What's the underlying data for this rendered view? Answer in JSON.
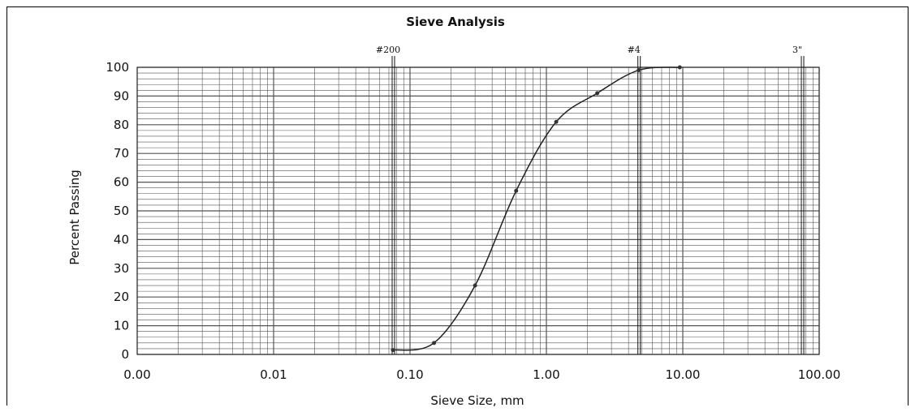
{
  "chart_data": {
    "type": "line",
    "title": "Sieve Analysis",
    "xlabel": "Sieve Size, mm",
    "ylabel": "Percent Passing",
    "x_scale": "log",
    "xlim": [
      0.001,
      100
    ],
    "ylim": [
      0,
      100
    ],
    "grid": true,
    "x_tick_labels": [
      "0.00",
      "0.01",
      "0.10",
      "1.00",
      "10.00",
      "100.00"
    ],
    "x_tick_values": [
      0.001,
      0.01,
      0.1,
      1,
      10,
      100
    ],
    "y_ticks": [
      0,
      10,
      20,
      30,
      40,
      50,
      60,
      70,
      80,
      90,
      100
    ],
    "sieve_markers": [
      {
        "label": "#200",
        "size": 0.075
      },
      {
        "label": "#4",
        "size": 4.75
      },
      {
        "label": "3\"",
        "size": 75
      }
    ],
    "series": [
      {
        "x": [
          0.075,
          0.15,
          0.3,
          0.6,
          1.18,
          2.36,
          4.75,
          9.5
        ],
        "y": [
          1.5,
          4,
          24,
          57,
          81,
          91,
          99,
          100
        ]
      }
    ],
    "colors": {
      "line": "#222222",
      "grid": "#555555",
      "marker": "#333333"
    }
  }
}
